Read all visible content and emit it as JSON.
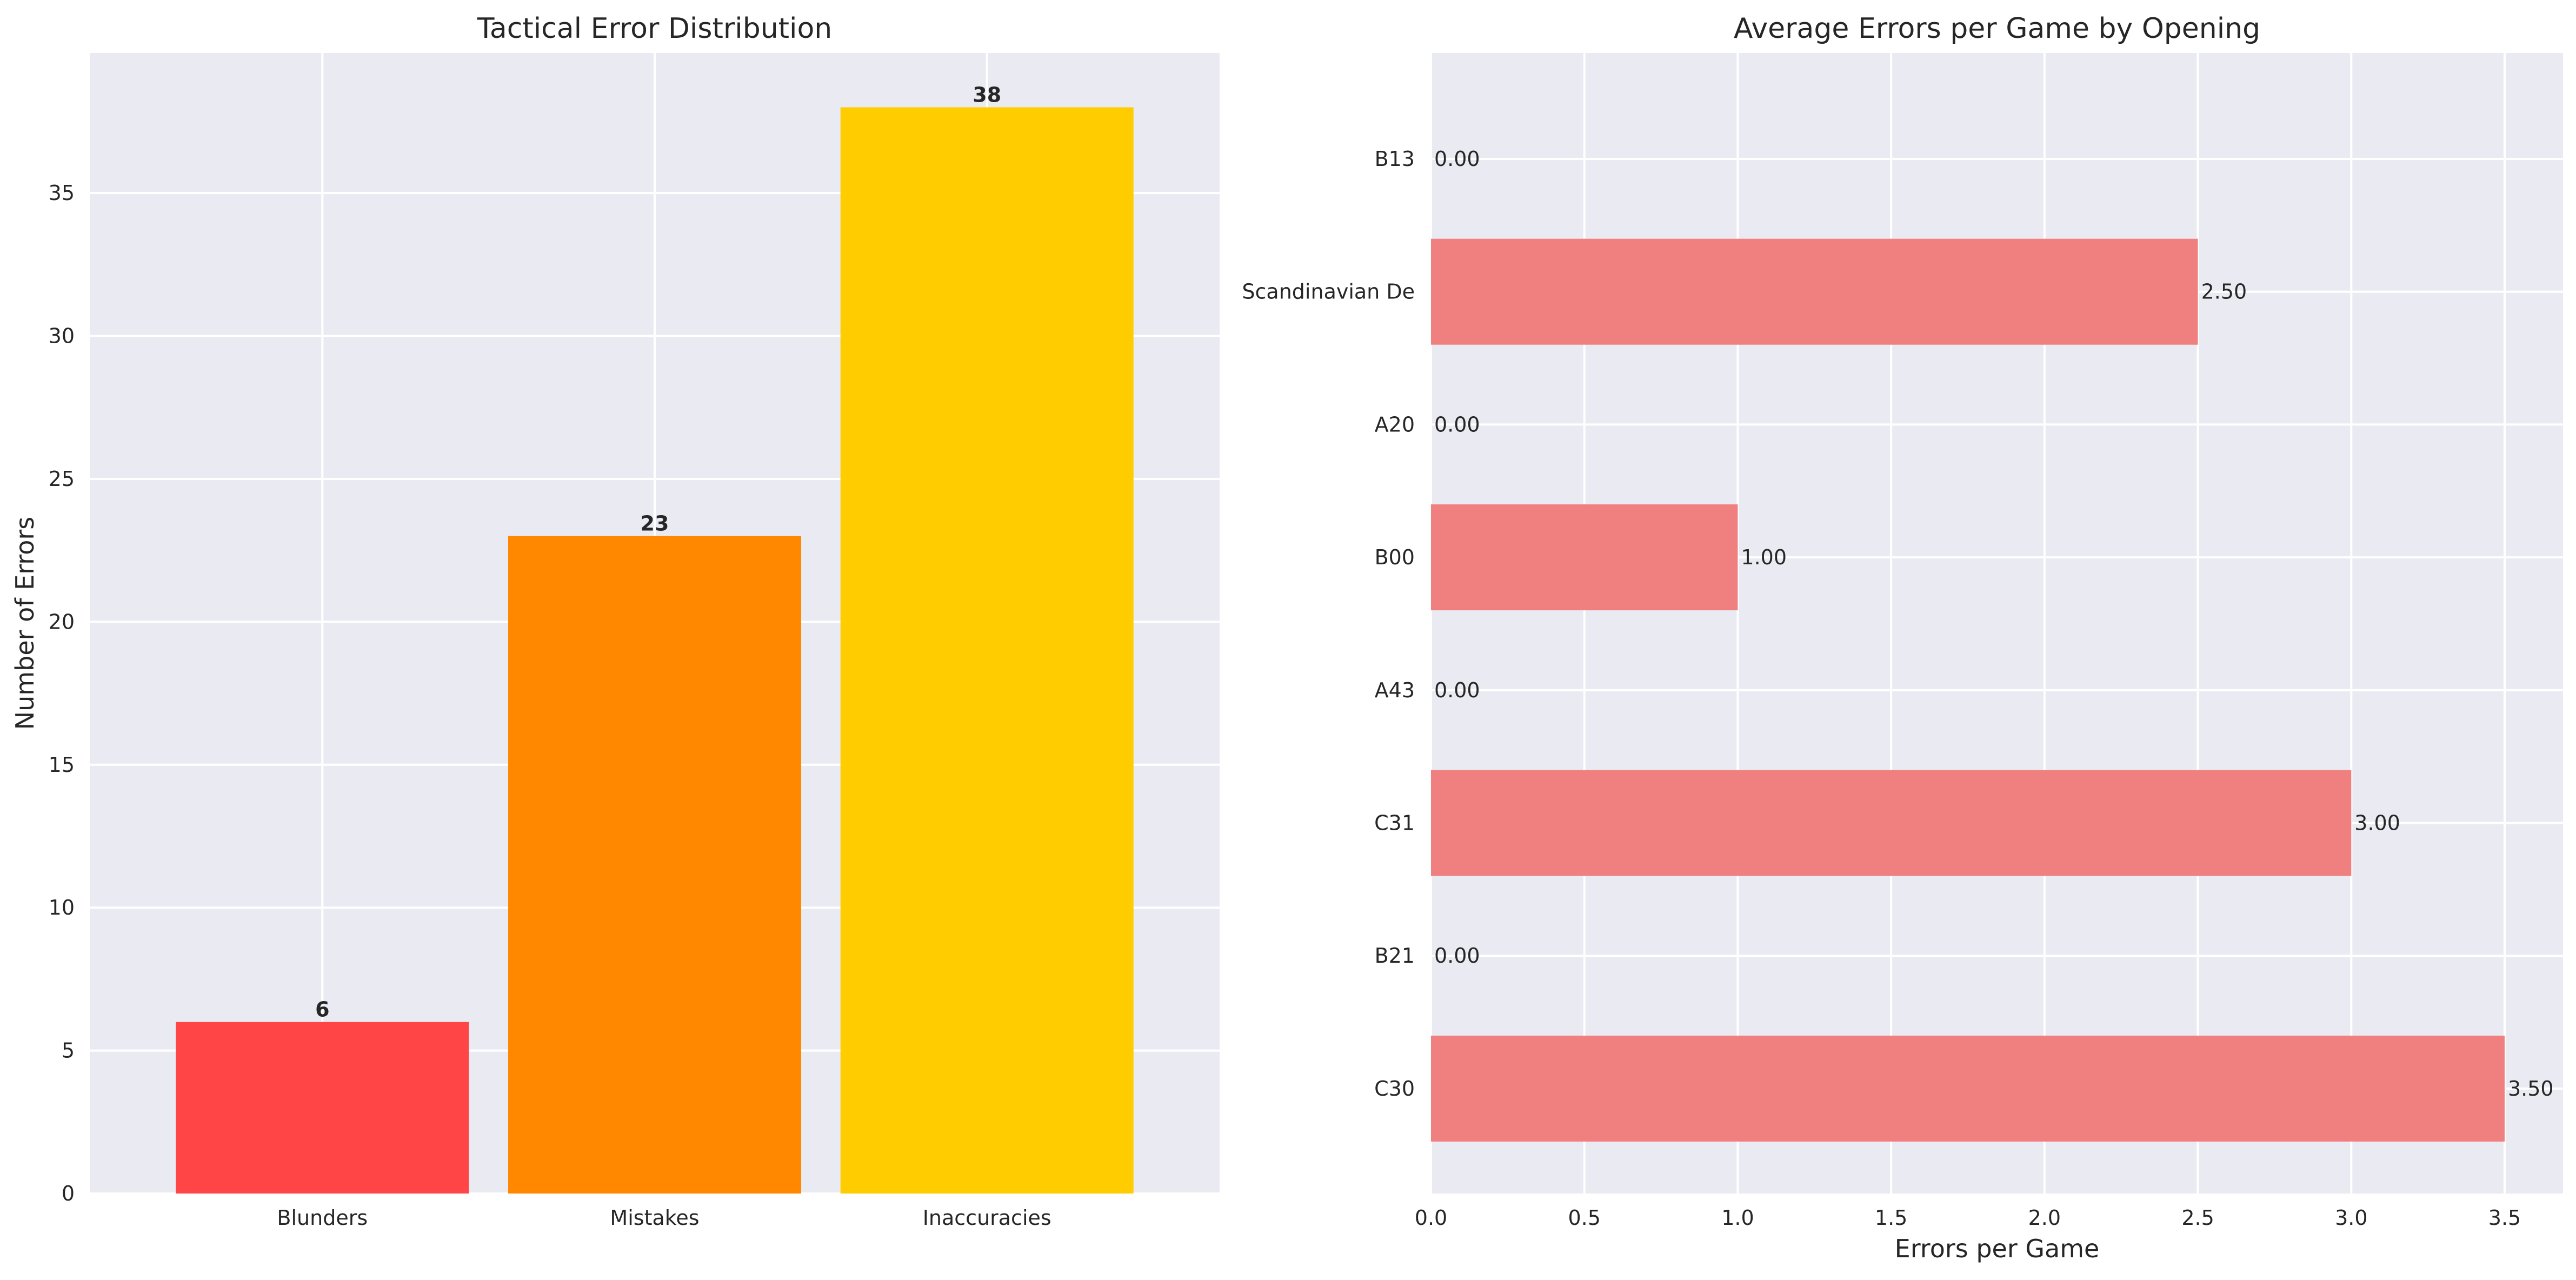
{
  "colors": {
    "plot_background": "#eaeaf2",
    "grid": "#ffffff",
    "text": "#262626",
    "blunders": "#ff4545",
    "mistakes": "#ff8800",
    "inaccuracies": "#ffcc00",
    "opening_bars": "#f08080"
  },
  "chart_data": [
    {
      "type": "bar",
      "title": "Tactical Error Distribution",
      "xlabel": "",
      "ylabel": "Number of Errors",
      "categories": [
        "Blunders",
        "Mistakes",
        "Inaccuracies"
      ],
      "values": [
        6,
        23,
        38
      ],
      "value_labels": [
        "6",
        "23",
        "38"
      ],
      "bar_colors": [
        "#ff4545",
        "#ff8800",
        "#ffcc00"
      ],
      "ylim": [
        0,
        39.9
      ],
      "yticks": [
        0,
        5,
        10,
        15,
        20,
        25,
        30,
        35
      ],
      "ytick_labels": [
        "0",
        "5",
        "10",
        "15",
        "20",
        "25",
        "30",
        "35"
      ],
      "grid": true
    },
    {
      "type": "bar",
      "orientation": "horizontal",
      "title": "Average Errors per Game by Opening",
      "xlabel": "Errors per Game",
      "ylabel": "",
      "categories": [
        "B13",
        "Scandinavian De",
        "A20",
        "B00",
        "A43",
        "C31",
        "B21",
        "C30"
      ],
      "values": [
        0.0,
        2.5,
        0.0,
        1.0,
        0.0,
        3.0,
        0.0,
        3.5
      ],
      "value_labels": [
        "0.00",
        "2.50",
        "0.00",
        "1.00",
        "0.00",
        "3.00",
        "0.00",
        "3.50"
      ],
      "bar_color": "#f08080",
      "xlim": [
        0,
        3.675
      ],
      "xticks": [
        0,
        0.5,
        1.0,
        1.5,
        2.0,
        2.5,
        3.0,
        3.5
      ],
      "xtick_labels": [
        "0.0",
        "0.5",
        "1.0",
        "1.5",
        "2.0",
        "2.5",
        "3.0",
        "3.5"
      ],
      "grid": true
    }
  ]
}
